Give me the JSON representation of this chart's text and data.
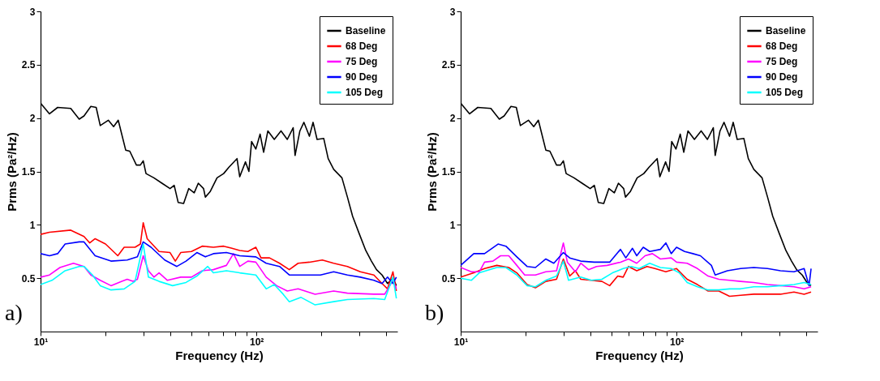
{
  "chart_data": [
    {
      "type": "line",
      "xlabel": "Frequency (Hz)",
      "ylabel": "Prms (Pa²/Hz)",
      "log": "x",
      "xlim": [
        10,
        450
      ],
      "ylim": [
        0,
        3
      ],
      "xticks": [
        {
          "value": 10,
          "label": "10¹"
        },
        {
          "value": 20,
          "label": null
        },
        {
          "value": 30,
          "label": null
        },
        {
          "value": 40,
          "label": null
        },
        {
          "value": 50,
          "label": null
        },
        {
          "value": 60,
          "label": null
        },
        {
          "value": 70,
          "label": null
        },
        {
          "value": 80,
          "label": null
        },
        {
          "value": 90,
          "label": null
        },
        {
          "value": 100,
          "label": "10²"
        },
        {
          "value": 200,
          "label": null
        },
        {
          "value": 300,
          "label": null
        },
        {
          "value": 400,
          "label": null
        }
      ],
      "yticks": [
        0.5,
        1,
        1.5,
        2,
        2.5,
        3
      ],
      "legend": "top right",
      "line_style": "solid",
      "annotations": [
        "a)"
      ],
      "series": [
        {
          "name": "Baseline",
          "color": "#000000",
          "x": [
            10,
            11,
            12,
            13.8,
            15.1,
            15.9,
            17.1,
            18.1,
            18.9,
            20.6,
            21.8,
            22.9,
            24.8,
            25.9,
            27.8,
            29,
            29.9,
            30.8,
            33.5,
            36.5,
            39.8,
            41.6,
            43.4,
            46,
            48.6,
            51.5,
            53.8,
            56.9,
            58,
            61,
            65.7,
            70.5,
            74.6,
            81.3,
            83.7,
            89,
            92.3,
            95,
            99.4,
            104,
            108,
            113,
            121,
            130,
            139,
            148,
            151,
            159,
            166,
            176,
            183,
            191,
            205,
            215,
            228,
            249,
            264,
            279,
            299,
            321,
            341,
            360,
            382,
            405,
            429,
            445
          ],
          "values": [
            2.14,
            2.04,
            2.1,
            2.09,
            1.99,
            2.02,
            2.11,
            2.1,
            1.93,
            1.98,
            1.92,
            1.98,
            1.7,
            1.69,
            1.56,
            1.56,
            1.6,
            1.48,
            1.44,
            1.39,
            1.34,
            1.37,
            1.21,
            1.2,
            1.34,
            1.3,
            1.39,
            1.34,
            1.26,
            1.31,
            1.44,
            1.48,
            1.54,
            1.62,
            1.45,
            1.59,
            1.5,
            1.78,
            1.71,
            1.85,
            1.68,
            1.88,
            1.8,
            1.88,
            1.8,
            1.91,
            1.65,
            1.88,
            1.96,
            1.83,
            1.96,
            1.8,
            1.81,
            1.62,
            1.52,
            1.44,
            1.26,
            1.08,
            0.92,
            0.76,
            0.66,
            0.58,
            0.53,
            0.45,
            0.5,
            0.43
          ]
        },
        {
          "name": "68 Deg",
          "color": "#ff0000",
          "x": [
            10,
            11,
            13.8,
            15.9,
            16.9,
            17.9,
            20,
            22.8,
            24.4,
            27.4,
            29,
            29.9,
            31.2,
            35.4,
            39.8,
            42.1,
            44.6,
            50,
            56.1,
            63.2,
            70.5,
            77,
            83.7,
            91.3,
            99.4,
            105,
            115,
            128,
            142,
            156,
            176,
            202,
            228,
            264,
            303,
            350,
            382,
            405,
            429,
            445
          ],
          "values": [
            0.91,
            0.93,
            0.95,
            0.89,
            0.83,
            0.87,
            0.82,
            0.71,
            0.79,
            0.79,
            0.82,
            1.02,
            0.87,
            0.75,
            0.74,
            0.66,
            0.74,
            0.75,
            0.8,
            0.79,
            0.8,
            0.78,
            0.76,
            0.75,
            0.79,
            0.69,
            0.69,
            0.64,
            0.58,
            0.64,
            0.65,
            0.67,
            0.64,
            0.61,
            0.56,
            0.53,
            0.45,
            0.4,
            0.56,
            0.38
          ]
        },
        {
          "name": "75 Deg",
          "color": "#ff00ff",
          "x": [
            10,
            11,
            12.3,
            14.2,
            15.9,
            17.1,
            18.9,
            21.2,
            23.8,
            25.2,
            26.8,
            28.1,
            29.9,
            31.6,
            33.5,
            35.4,
            38.7,
            44.6,
            50,
            56.1,
            63.2,
            72.6,
            78.3,
            83.7,
            91.3,
            99.4,
            111,
            124,
            139,
            156,
            187,
            228,
            264,
            350,
            393,
            429,
            445
          ],
          "values": [
            0.51,
            0.53,
            0.6,
            0.64,
            0.61,
            0.53,
            0.48,
            0.43,
            0.47,
            0.49,
            0.47,
            0.49,
            0.71,
            0.57,
            0.51,
            0.55,
            0.48,
            0.51,
            0.51,
            0.57,
            0.58,
            0.62,
            0.73,
            0.61,
            0.66,
            0.65,
            0.51,
            0.43,
            0.38,
            0.4,
            0.35,
            0.38,
            0.36,
            0.35,
            0.35,
            0.48,
            0.4
          ]
        },
        {
          "name": "90 Deg",
          "color": "#0000ff",
          "x": [
            10,
            11,
            12,
            13,
            15.1,
            15.9,
            17.9,
            21.2,
            25.2,
            28.1,
            29.9,
            32.5,
            37.6,
            42.8,
            47.2,
            53,
            58,
            63.2,
            72.6,
            83.7,
            99.4,
            111,
            128,
            142,
            166,
            198,
            228,
            264,
            303,
            350,
            382,
            405,
            429,
            445
          ],
          "values": [
            0.73,
            0.71,
            0.73,
            0.82,
            0.84,
            0.84,
            0.71,
            0.66,
            0.67,
            0.7,
            0.84,
            0.79,
            0.67,
            0.61,
            0.66,
            0.74,
            0.7,
            0.73,
            0.74,
            0.71,
            0.7,
            0.64,
            0.61,
            0.53,
            0.53,
            0.53,
            0.56,
            0.53,
            0.51,
            0.48,
            0.45,
            0.51,
            0.45,
            0.51
          ]
        },
        {
          "name": "105  Deg",
          "color": "#00ffff",
          "x": [
            10,
            11.3,
            13,
            15.1,
            15.9,
            17.4,
            18.9,
            21.2,
            24.4,
            27.4,
            29.9,
            31.6,
            35.4,
            40.9,
            47.2,
            53,
            59.5,
            63.2,
            72.6,
            83.7,
            99.4,
            111,
            121,
            133,
            142,
            161,
            187,
            228,
            264,
            350,
            393,
            429,
            445
          ],
          "values": [
            0.44,
            0.48,
            0.57,
            0.61,
            0.61,
            0.53,
            0.43,
            0.39,
            0.4,
            0.47,
            0.82,
            0.51,
            0.47,
            0.43,
            0.46,
            0.52,
            0.61,
            0.55,
            0.57,
            0.55,
            0.53,
            0.4,
            0.44,
            0.35,
            0.28,
            0.32,
            0.25,
            0.28,
            0.3,
            0.31,
            0.3,
            0.51,
            0.31
          ]
        }
      ]
    },
    {
      "type": "line",
      "xlabel": "Frequency (Hz)",
      "ylabel": "Prms (Pa²/Hz)",
      "log": "x",
      "xlim": [
        10,
        450
      ],
      "ylim": [
        0,
        3
      ],
      "xticks": [
        {
          "value": 10,
          "label": "10¹"
        },
        {
          "value": 20,
          "label": null
        },
        {
          "value": 30,
          "label": null
        },
        {
          "value": 40,
          "label": null
        },
        {
          "value": 50,
          "label": null
        },
        {
          "value": 60,
          "label": null
        },
        {
          "value": 70,
          "label": null
        },
        {
          "value": 80,
          "label": null
        },
        {
          "value": 90,
          "label": null
        },
        {
          "value": 100,
          "label": "10²"
        },
        {
          "value": 200,
          "label": null
        },
        {
          "value": 300,
          "label": null
        },
        {
          "value": 400,
          "label": null
        }
      ],
      "yticks": [
        0.5,
        1,
        1.5,
        2,
        2.5,
        3
      ],
      "legend": "top right",
      "line_style": "solid",
      "annotations": [
        "b)"
      ],
      "series": [
        {
          "name": "Baseline",
          "color": "#000000",
          "x": [
            10,
            11,
            12,
            13.8,
            15.1,
            15.9,
            17.1,
            18.1,
            18.9,
            20.6,
            21.8,
            22.9,
            24.8,
            25.9,
            27.8,
            29,
            29.9,
            30.8,
            33.5,
            36.5,
            39.8,
            41.6,
            43.4,
            46,
            48.6,
            51.5,
            53.8,
            56.9,
            58,
            61,
            65.7,
            70.5,
            74.6,
            81.3,
            83.7,
            89,
            92.3,
            95,
            99.4,
            104,
            108,
            113,
            121,
            130,
            139,
            148,
            151,
            159,
            166,
            176,
            183,
            191,
            205,
            215,
            228,
            249,
            264,
            279,
            299,
            321,
            341,
            360,
            382,
            405,
            420
          ],
          "values": [
            2.14,
            2.04,
            2.1,
            2.09,
            1.99,
            2.02,
            2.11,
            2.1,
            1.93,
            1.98,
            1.92,
            1.98,
            1.7,
            1.69,
            1.56,
            1.56,
            1.6,
            1.48,
            1.44,
            1.39,
            1.34,
            1.37,
            1.21,
            1.2,
            1.34,
            1.3,
            1.39,
            1.34,
            1.26,
            1.31,
            1.44,
            1.48,
            1.54,
            1.62,
            1.45,
            1.59,
            1.5,
            1.78,
            1.71,
            1.85,
            1.68,
            1.88,
            1.8,
            1.88,
            1.8,
            1.91,
            1.65,
            1.88,
            1.96,
            1.83,
            1.96,
            1.8,
            1.81,
            1.62,
            1.52,
            1.44,
            1.26,
            1.08,
            0.92,
            0.76,
            0.66,
            0.58,
            0.53,
            0.45,
            0.43
          ]
        },
        {
          "name": "68 Deg",
          "color": "#ff0000",
          "x": [
            10,
            11.5,
            12.9,
            14.7,
            16.7,
            18.2,
            20.3,
            22.2,
            24.8,
            27.8,
            29.9,
            32,
            34,
            36,
            40.3,
            45.1,
            49,
            53.4,
            56.6,
            59.9,
            65.4,
            73,
            79.4,
            89.2,
            100,
            112,
            125,
            140,
            157,
            176,
            198,
            228,
            264,
            303,
            350,
            390,
            420
          ],
          "values": [
            0.51,
            0.55,
            0.59,
            0.62,
            0.6,
            0.55,
            0.44,
            0.41,
            0.47,
            0.49,
            0.68,
            0.52,
            0.57,
            0.49,
            0.48,
            0.47,
            0.43,
            0.52,
            0.51,
            0.61,
            0.57,
            0.61,
            0.59,
            0.56,
            0.59,
            0.49,
            0.44,
            0.38,
            0.38,
            0.33,
            0.34,
            0.35,
            0.35,
            0.35,
            0.37,
            0.35,
            0.37
          ]
        },
        {
          "name": "75 Deg",
          "color": "#ff00ff",
          "x": [
            10,
            11.2,
            12.2,
            12.9,
            14.1,
            15.3,
            16.7,
            18.2,
            19.8,
            22.2,
            24.8,
            27.8,
            29.9,
            31.2,
            34,
            36,
            39.1,
            42.6,
            47.7,
            55,
            59.9,
            65.4,
            71.5,
            77.3,
            84.2,
            94.5,
            100,
            112,
            125,
            140,
            157,
            176,
            198,
            228,
            264,
            303,
            350,
            390,
            420
          ],
          "values": [
            0.6,
            0.56,
            0.56,
            0.65,
            0.66,
            0.71,
            0.71,
            0.62,
            0.53,
            0.53,
            0.56,
            0.57,
            0.83,
            0.65,
            0.56,
            0.64,
            0.58,
            0.61,
            0.62,
            0.65,
            0.68,
            0.64,
            0.71,
            0.73,
            0.68,
            0.69,
            0.65,
            0.64,
            0.59,
            0.52,
            0.49,
            0.48,
            0.47,
            0.46,
            0.44,
            0.43,
            0.42,
            0.4,
            0.42
          ]
        },
        {
          "name": "90 Deg",
          "color": "#0000ff",
          "x": [
            10,
            11.5,
            12.9,
            14.9,
            16.2,
            18.2,
            20.3,
            22.2,
            24.8,
            27,
            29.9,
            32,
            36,
            41.5,
            49,
            55,
            58.2,
            62.5,
            65.4,
            70.1,
            75.1,
            84.2,
            89.2,
            94.5,
            100,
            109,
            119,
            129,
            145,
            151,
            172,
            198,
            228,
            264,
            303,
            350,
            390,
            411,
            420
          ],
          "values": [
            0.62,
            0.73,
            0.73,
            0.82,
            0.8,
            0.7,
            0.61,
            0.6,
            0.68,
            0.64,
            0.74,
            0.69,
            0.66,
            0.65,
            0.65,
            0.77,
            0.69,
            0.78,
            0.71,
            0.79,
            0.75,
            0.77,
            0.83,
            0.73,
            0.79,
            0.75,
            0.73,
            0.71,
            0.62,
            0.53,
            0.57,
            0.59,
            0.6,
            0.59,
            0.57,
            0.56,
            0.59,
            0.43,
            0.59
          ]
        },
        {
          "name": "105 Deg",
          "color": "#00ffff",
          "x": [
            10,
            11.2,
            12.2,
            14.7,
            16.2,
            18.2,
            20.3,
            22.2,
            24.8,
            27.8,
            29.9,
            31.6,
            36,
            40.3,
            45.1,
            50.5,
            56.6,
            61.6,
            67.1,
            75.1,
            84.2,
            94.5,
            103,
            112,
            125,
            140,
            157,
            176,
            198,
            228,
            264,
            303,
            350,
            390,
            420
          ],
          "values": [
            0.5,
            0.48,
            0.55,
            0.6,
            0.6,
            0.53,
            0.43,
            0.42,
            0.48,
            0.52,
            0.66,
            0.48,
            0.51,
            0.48,
            0.49,
            0.55,
            0.59,
            0.61,
            0.59,
            0.64,
            0.6,
            0.59,
            0.55,
            0.46,
            0.42,
            0.39,
            0.39,
            0.4,
            0.4,
            0.42,
            0.42,
            0.43,
            0.44,
            0.46,
            0.44
          ]
        }
      ]
    }
  ]
}
